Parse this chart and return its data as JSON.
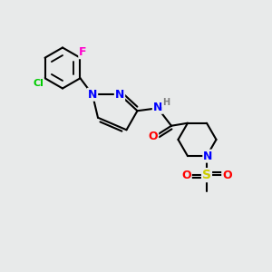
{
  "bg_color": "#e8eaea",
  "bond_color": "#000000",
  "bond_width": 1.5,
  "atom_colors": {
    "N": "#0000ff",
    "O": "#ff0000",
    "S": "#cccc00",
    "Cl": "#00cc00",
    "F": "#ff00cc",
    "H": "#808080",
    "C": "#000000"
  },
  "font_size": 9,
  "fig_size": [
    3.0,
    3.0
  ],
  "dpi": 100
}
